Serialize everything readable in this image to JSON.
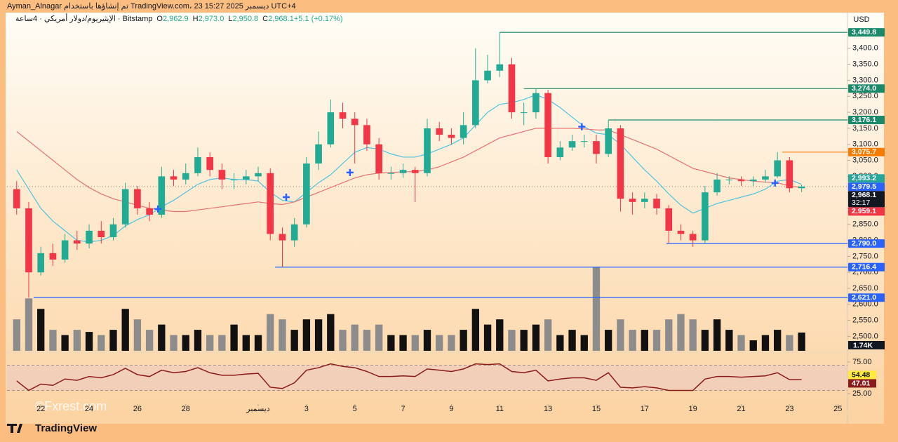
{
  "attribution": "Ayman_Alnagar تم إنشاؤها باستخدام TradingView.com، 23 ديسمبر 2025 15:27 UTC+4",
  "watermark": "©Fxrest.com",
  "brand": "TradingView",
  "chart_data": {
    "type": "candlestick",
    "title": "الإيثيريوم/دولار أمريكي · 4ساعة · Bitstamp",
    "ohlc_legend": [
      {
        "key": "O",
        "text": "2,962.9"
      },
      {
        "key": "H",
        "text": "2,973.0"
      },
      {
        "key": "L",
        "text": "2,950.8"
      },
      {
        "key": "C",
        "text": "2,968.1"
      },
      {
        "key": "",
        "text": "+5.1 (+0.17%)"
      }
    ],
    "currency": "USD",
    "up_color": "#22ab94",
    "down_color": "#f23645",
    "x": [
      -1,
      -0.5,
      0,
      0.5,
      1,
      1.5,
      2,
      2.5,
      3,
      3.5,
      4,
      4.5,
      5,
      5.5,
      6,
      6.5,
      7,
      7.5,
      8,
      8.5,
      9,
      9.5,
      10,
      10.5,
      11,
      11.5,
      12,
      12.5,
      13,
      13.5,
      14,
      14.5,
      15,
      15.5,
      16,
      16.5,
      17,
      17.5,
      18,
      18.5,
      19,
      19.5,
      20,
      20.5,
      21,
      21.5,
      22,
      22.5,
      23,
      23.5,
      24,
      24.5,
      25,
      25.5,
      26,
      26.5,
      27,
      27.5,
      28,
      28.5,
      29,
      29.5,
      30,
      30.5,
      31,
      31.5
    ],
    "open": [
      2960,
      2900,
      2700,
      2760,
      2740,
      2800,
      2790,
      2830,
      2810,
      2850,
      2960,
      2900,
      2880,
      3000,
      2990,
      3010,
      3060,
      3020,
      2990,
      2990,
      3000,
      3010,
      2820,
      2800,
      2850,
      3040,
      3100,
      3200,
      3180,
      3160,
      3100,
      3010,
      3010,
      3020,
      3010,
      3150,
      3130,
      3120,
      3160,
      3300,
      3330,
      3350,
      3200,
      3200,
      3260,
      3060,
      3090,
      3110,
      3110,
      3070,
      3150,
      2930,
      2920,
      2930,
      2900,
      2830,
      2820,
      2800,
      2950,
      2990,
      2990,
      2985,
      2990,
      3000,
      3050,
      2962.9
    ],
    "high": [
      2985,
      2920,
      2780,
      2790,
      2820,
      2830,
      2850,
      2860,
      2870,
      2980,
      2970,
      2920,
      3030,
      3020,
      3040,
      3090,
      3075,
      3040,
      3010,
      3020,
      3030,
      3025,
      2840,
      2870,
      3060,
      3140,
      3240,
      3230,
      3200,
      3180,
      3120,
      3030,
      3040,
      3030,
      3180,
      3170,
      3150,
      3200,
      3400,
      3380,
      3449.8,
      3370,
      3230,
      3274.0,
      3270,
      3110,
      3130,
      3130,
      3130,
      3176.1,
      3160,
      2950,
      2950,
      2945,
      2910,
      2850,
      2830,
      2970,
      3010,
      3000,
      3000,
      3000,
      3020,
      3075.7,
      3060,
      2973.0
    ],
    "low": [
      2880,
      2621.0,
      2690,
      2720,
      2730,
      2770,
      2775,
      2790,
      2800,
      2840,
      2880,
      2860,
      2870,
      2970,
      2975,
      3000,
      3000,
      2960,
      2960,
      2975,
      2985,
      2800,
      2716.4,
      2780,
      2840,
      3020,
      3090,
      3150,
      3040,
      3080,
      2990,
      2990,
      2995,
      2920,
      3000,
      3110,
      3100,
      3100,
      3150,
      3290,
      3310,
      3180,
      3160,
      3180,
      3040,
      3050,
      3080,
      3090,
      3040,
      3060,
      2890,
      2880,
      2900,
      2880,
      2790.0,
      2800,
      2780,
      2790,
      2940,
      2975,
      2970,
      2970,
      2980,
      2995,
      2950,
      2950.8
    ],
    "close": [
      2900,
      2700,
      2760,
      2740,
      2800,
      2790,
      2830,
      2810,
      2850,
      2960,
      2900,
      2880,
      3000,
      2990,
      3010,
      3060,
      3020,
      2990,
      2990,
      3000,
      3010,
      2820,
      2800,
      2850,
      3040,
      3100,
      3200,
      3180,
      3160,
      3100,
      3010,
      3010,
      3020,
      3010,
      3150,
      3130,
      3120,
      3160,
      3300,
      3330,
      3350,
      3200,
      3200,
      3260,
      3060,
      3090,
      3110,
      3110,
      3070,
      3150,
      2930,
      2920,
      2930,
      2900,
      2830,
      2820,
      2800,
      2950,
      2990,
      2990,
      2985,
      2990,
      3000,
      3050,
      2962.9,
      2968.1
    ],
    "xlim": [
      -1.4,
      33.4
    ],
    "xticks": [
      {
        "value": 0,
        "label": "22"
      },
      {
        "value": 2,
        "label": "24"
      },
      {
        "value": 4,
        "label": "26"
      },
      {
        "value": 6,
        "label": "28"
      },
      {
        "value": 9,
        "label": "ديسمبر"
      },
      {
        "value": 11,
        "label": "3"
      },
      {
        "value": 13,
        "label": "5"
      },
      {
        "value": 15,
        "label": "7"
      },
      {
        "value": 17,
        "label": "9"
      },
      {
        "value": 19,
        "label": "11"
      },
      {
        "value": 21,
        "label": "13"
      },
      {
        "value": 23,
        "label": "15"
      },
      {
        "value": 25,
        "label": "17"
      },
      {
        "value": 27,
        "label": "19"
      },
      {
        "value": 29,
        "label": "21"
      },
      {
        "value": 31,
        "label": "23"
      },
      {
        "value": 33,
        "label": "25"
      }
    ],
    "ylim": [
      2455,
      3507
    ],
    "yticks": [
      {
        "value": 2500,
        "label": "2,500.0"
      },
      {
        "value": 2550,
        "label": "2,550.0"
      },
      {
        "value": 2600,
        "label": "2,600.0"
      },
      {
        "value": 2650,
        "label": "2,650.0"
      },
      {
        "value": 2700,
        "label": "2,700.0"
      },
      {
        "value": 2750,
        "label": "2,750.0"
      },
      {
        "value": 2800,
        "label": "2,800.0"
      },
      {
        "value": 2850,
        "label": "2,850.0"
      },
      {
        "value": 2900,
        "label": "2,900.0"
      },
      {
        "value": 2950,
        "label": "2,950.0"
      },
      {
        "value": 3000,
        "label": "3,000.0"
      },
      {
        "value": 3050,
        "label": "3,050.0"
      },
      {
        "value": 3100,
        "label": "3,100.0"
      },
      {
        "value": 3150,
        "label": "3,150.0"
      },
      {
        "value": 3200,
        "label": "3,200.0"
      },
      {
        "value": 3250,
        "label": "3,250.0"
      },
      {
        "value": 3300,
        "label": "3,300.0"
      },
      {
        "value": 3350,
        "label": "3,350.0"
      },
      {
        "value": 3400,
        "label": "3,400.0"
      }
    ],
    "moving_averages": [
      {
        "color": "#4fc3e0",
        "values": [
          3020,
          2960,
          2900,
          2860,
          2830,
          2800,
          2795,
          2800,
          2815,
          2845,
          2865,
          2880,
          2905,
          2925,
          2950,
          2975,
          2990,
          2995,
          2990,
          2990,
          2985,
          2950,
          2925,
          2920,
          2950,
          2980,
          3005,
          3040,
          3075,
          3090,
          3085,
          3070,
          3060,
          3060,
          3070,
          3085,
          3100,
          3120,
          3160,
          3200,
          3225,
          3230,
          3240,
          3255,
          3240,
          3215,
          3185,
          3155,
          3135,
          3130,
          3100,
          3060,
          3020,
          2985,
          2945,
          2910,
          2885,
          2900,
          2915,
          2925,
          2935,
          2945,
          2960,
          2985,
          2990,
          2975
        ]
      },
      {
        "color": "#e57373",
        "values": [
          3140,
          3110,
          3080,
          3050,
          3020,
          2990,
          2965,
          2945,
          2930,
          2920,
          2910,
          2900,
          2895,
          2890,
          2890,
          2895,
          2900,
          2905,
          2910,
          2915,
          2920,
          2915,
          2912,
          2920,
          2935,
          2950,
          2965,
          2980,
          2995,
          3005,
          3010,
          3012,
          3014,
          3015,
          3020,
          3030,
          3045,
          3060,
          3080,
          3100,
          3120,
          3130,
          3140,
          3150,
          3150,
          3150,
          3150,
          3148,
          3145,
          3145,
          3130,
          3115,
          3100,
          3085,
          3065,
          3045,
          3025,
          3015,
          3005,
          2995,
          2990,
          2985,
          2982,
          2980,
          2970,
          2965
        ]
      }
    ],
    "levels": [
      {
        "value": 3449.8,
        "label": "3,449.8",
        "color": "#1b8a6b",
        "from": 19
      },
      {
        "value": 3274.0,
        "label": "3,274.0",
        "color": "#1b8a6b",
        "from": 20
      },
      {
        "value": 3176.1,
        "label": "3,176.1",
        "color": "#1b8a6b",
        "from": 23.5
      },
      {
        "value": 3075.7,
        "label": "3,075.7",
        "color": "#f57c00",
        "from": 30.7
      },
      {
        "value": 2993.2,
        "label": "2,993.2",
        "color": "#26a69a",
        "from": null
      },
      {
        "value": 2979.5,
        "label": "2,979.5",
        "color": "#2962ff",
        "from": null
      },
      {
        "value": 2968.1,
        "label": "2,968.1",
        "color": "#131722",
        "from": null,
        "countdown": "32:17"
      },
      {
        "value": 2959.1,
        "label": "2,959.1",
        "color": "#f23645",
        "from": null
      },
      {
        "value": 2790.0,
        "label": "2,790.0",
        "color": "#2962ff",
        "from": 25.9
      },
      {
        "value": 2716.4,
        "label": "2,716.4",
        "color": "#2962ff",
        "from": 9.7
      },
      {
        "value": 2621.0,
        "label": "2,621.0",
        "color": "#2962ff",
        "from": -0.3
      }
    ],
    "crosses": [
      {
        "x": 4.85,
        "y": 2898
      },
      {
        "x": 10.16,
        "y": 2935
      },
      {
        "x": 12.8,
        "y": 3012
      },
      {
        "x": 22.4,
        "y": 3155
      },
      {
        "x": 30.4,
        "y": 2979
      }
    ],
    "cross_color": "#2962ff",
    "volume": {
      "values": [
        3,
        5,
        4,
        2,
        1.5,
        2,
        1.8,
        1.5,
        2,
        4,
        3,
        2,
        2.5,
        1.5,
        1.5,
        2,
        1.5,
        1.5,
        2.5,
        1.5,
        1.5,
        3.5,
        3,
        2,
        3,
        3,
        3.5,
        2,
        2.5,
        2,
        2.5,
        1.5,
        1.5,
        1.5,
        2,
        1.5,
        1.5,
        2,
        4,
        2.5,
        3,
        2,
        2,
        2.5,
        3,
        1.5,
        2,
        1.5,
        8,
        2,
        3,
        2,
        2,
        2,
        3,
        3.5,
        3,
        2,
        3,
        2,
        1.5,
        1,
        1.5,
        2,
        1.5,
        1.74
      ],
      "last_label": "1.74K",
      "up_color": "#111111",
      "down_color": "#8c8c8c",
      "ylim": [
        0,
        8.7
      ]
    },
    "rsi": {
      "color": "#8b1a1a",
      "values": [
        45,
        30,
        40,
        38,
        48,
        46,
        52,
        50,
        55,
        65,
        55,
        52,
        62,
        58,
        60,
        66,
        58,
        54,
        54,
        56,
        57,
        35,
        33,
        42,
        62,
        66,
        72,
        68,
        66,
        60,
        52,
        52,
        53,
        52,
        64,
        62,
        60,
        64,
        72,
        71,
        72,
        60,
        58,
        62,
        45,
        48,
        50,
        50,
        46,
        58,
        35,
        34,
        36,
        34,
        30,
        30,
        30,
        48,
        52,
        52,
        51,
        52,
        53,
        58,
        47,
        47.01
      ],
      "ylim": [
        9.4,
        87.2
      ],
      "yticks": [
        {
          "value": 75,
          "label": "75.00"
        },
        {
          "value": 25,
          "label": "25.00"
        }
      ],
      "band": [
        30,
        70
      ],
      "labels": [
        {
          "value": 54.48,
          "label": "54.48",
          "color": "#ffeb3b",
          "text_color": "#131722"
        },
        {
          "value": 47.01,
          "label": "47.01",
          "color": "#8b1a1a",
          "text_color": "#ffffff"
        }
      ]
    }
  }
}
